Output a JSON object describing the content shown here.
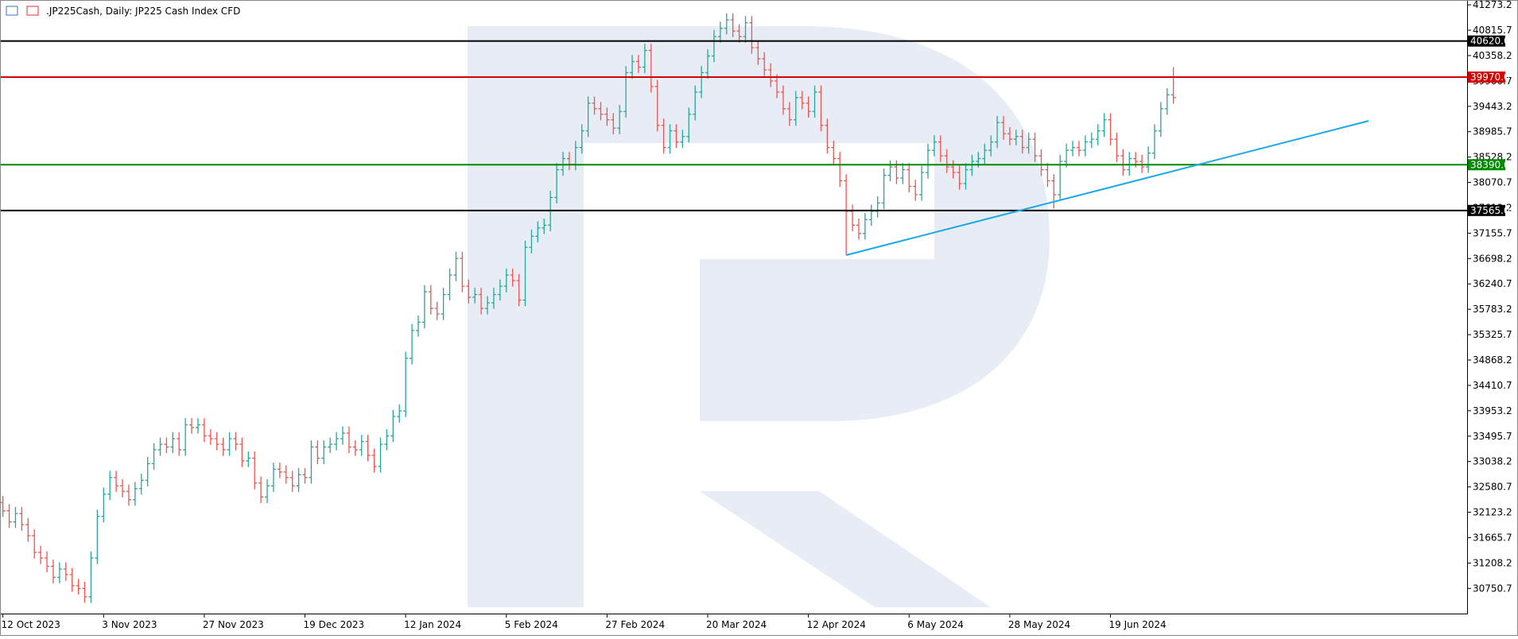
{
  "chart_data": {
    "type": "ohlc",
    "title": ".JP225Cash, Daily:  JP225 Cash Index CFD",
    "up_color": "#26a69a",
    "down_color": "#ef5350",
    "categories": [
      "12 Oct 2023",
      null,
      null,
      null,
      null,
      null,
      null,
      null,
      null,
      null,
      null,
      null,
      null,
      null,
      null,
      null,
      "3 Nov 2023",
      null,
      null,
      null,
      null,
      null,
      null,
      null,
      null,
      null,
      null,
      null,
      null,
      null,
      null,
      null,
      "27 Nov 2023",
      null,
      null,
      null,
      null,
      null,
      null,
      null,
      null,
      null,
      null,
      null,
      null,
      null,
      null,
      null,
      "19 Dec 2023",
      null,
      null,
      null,
      null,
      null,
      null,
      null,
      null,
      null,
      null,
      null,
      null,
      null,
      null,
      null,
      "12 Jan 2024",
      null,
      null,
      null,
      null,
      null,
      null,
      null,
      null,
      null,
      null,
      null,
      null,
      null,
      null,
      null,
      "5 Feb 2024",
      null,
      null,
      null,
      null,
      null,
      null,
      null,
      null,
      null,
      null,
      null,
      null,
      null,
      null,
      null,
      "27 Feb 2024",
      null,
      null,
      null,
      null,
      null,
      null,
      null,
      null,
      null,
      null,
      null,
      null,
      null,
      null,
      null,
      "20 Mar 2024",
      null,
      null,
      null,
      null,
      null,
      null,
      null,
      null,
      null,
      null,
      null,
      null,
      null,
      null,
      null,
      "12 Apr 2024",
      null,
      null,
      null,
      null,
      null,
      null,
      null,
      null,
      null,
      null,
      null,
      null,
      null,
      null,
      null,
      "6 May 2024",
      null,
      null,
      null,
      null,
      null,
      null,
      null,
      null,
      null,
      null,
      null,
      null,
      null,
      null,
      null,
      "28 May 2024",
      null,
      null,
      null,
      null,
      null,
      null,
      null,
      null,
      null,
      null,
      null,
      null,
      null,
      null,
      null,
      "19 Jun 2024",
      null,
      null,
      null,
      null,
      null,
      null,
      null,
      null,
      null,
      null
    ],
    "open": [
      32300,
      32150,
      31950,
      32100,
      31900,
      31700,
      31400,
      31300,
      31150,
      30950,
      31100,
      31000,
      30800,
      30750,
      30600,
      31300,
      32050,
      32450,
      32750,
      32600,
      32500,
      32350,
      32550,
      32700,
      33000,
      33250,
      33350,
      33300,
      33450,
      33250,
      33700,
      33650,
      33700,
      33500,
      33450,
      33350,
      33250,
      33450,
      33350,
      33050,
      33100,
      32650,
      32400,
      32600,
      32900,
      32850,
      32750,
      32600,
      32800,
      32750,
      33300,
      33100,
      33300,
      33350,
      33450,
      33550,
      33300,
      33250,
      33400,
      33150,
      32950,
      33350,
      33500,
      33850,
      33950,
      34900,
      35400,
      35550,
      36100,
      35800,
      35700,
      36050,
      36400,
      36700,
      36200,
      36000,
      36050,
      35800,
      35900,
      36050,
      36200,
      36400,
      36300,
      35950,
      36900,
      37100,
      37250,
      37300,
      37800,
      38300,
      38500,
      38400,
      38700,
      39000,
      39500,
      39400,
      39300,
      39200,
      39050,
      39350,
      40050,
      40250,
      40150,
      40450,
      39800,
      39100,
      38700,
      39000,
      38800,
      38900,
      39300,
      39700,
      40050,
      40350,
      40700,
      40850,
      41000,
      40800,
      40700,
      40950,
      40500,
      40300,
      40100,
      39900,
      39700,
      39400,
      39200,
      39600,
      39500,
      39350,
      39700,
      39100,
      38700,
      38500,
      38100,
      37550,
      37300,
      37150,
      37400,
      37550,
      37700,
      38200,
      38350,
      38150,
      38300,
      38000,
      37850,
      38250,
      38650,
      38800,
      38550,
      38350,
      38250,
      38050,
      38300,
      38450,
      38500,
      38650,
      38800,
      39150,
      38950,
      38850,
      38900,
      38700,
      38850,
      38550,
      38300,
      38100,
      37850,
      38450,
      38650,
      38700,
      38650,
      38800,
      38850,
      39000,
      39200,
      38850,
      38550,
      38300,
      38500,
      38450,
      38350,
      38600,
      39000,
      39400,
      39650
    ],
    "high": [
      32420,
      32270,
      32220,
      32220,
      32020,
      31820,
      31520,
      31420,
      31270,
      31220,
      31220,
      31120,
      30920,
      30870,
      31420,
      32170,
      32570,
      32870,
      32870,
      32720,
      32620,
      32670,
      32820,
      33120,
      33370,
      33470,
      33470,
      33570,
      33570,
      33820,
      33820,
      33820,
      33820,
      33620,
      33570,
      33470,
      33570,
      33570,
      33470,
      33220,
      33220,
      32770,
      32720,
      33020,
      33020,
      32970,
      32870,
      32920,
      32920,
      33420,
      33420,
      33420,
      33470,
      33570,
      33670,
      33670,
      33420,
      33520,
      33520,
      33270,
      33470,
      33620,
      33970,
      34070,
      35020,
      35520,
      35670,
      36220,
      36220,
      35920,
      36170,
      36520,
      36820,
      36820,
      36320,
      36170,
      36170,
      36020,
      36170,
      36320,
      36520,
      36520,
      36420,
      37020,
      37220,
      37370,
      37420,
      37920,
      38420,
      38620,
      38620,
      38820,
      39120,
      39620,
      39620,
      39520,
      39420,
      39320,
      39470,
      40170,
      40370,
      40370,
      40570,
      40570,
      39920,
      39220,
      39120,
      39120,
      39020,
      39420,
      39820,
      40170,
      40470,
      40820,
      40970,
      41120,
      41120,
      40920,
      41070,
      41070,
      40620,
      40420,
      40220,
      40020,
      39820,
      39520,
      39720,
      39720,
      39620,
      39820,
      39820,
      39220,
      38820,
      38620,
      38220,
      37670,
      37420,
      37520,
      37670,
      37820,
      38320,
      38470,
      38470,
      38420,
      38420,
      38120,
      38370,
      38770,
      38920,
      38920,
      38670,
      38470,
      38370,
      38420,
      38570,
      38620,
      38770,
      38920,
      39270,
      39270,
      39070,
      39020,
      39020,
      38970,
      38970,
      38670,
      38420,
      38220,
      38570,
      38770,
      38820,
      38820,
      38920,
      38970,
      39120,
      39320,
      39320,
      38970,
      38670,
      38620,
      38620,
      38570,
      38720,
      39120,
      39520,
      39770,
      40150
    ],
    "low": [
      32040,
      31840,
      31840,
      31790,
      31590,
      31290,
      31190,
      31040,
      30840,
      30840,
      30890,
      30690,
      30640,
      30490,
      30490,
      31190,
      31940,
      32340,
      32490,
      32390,
      32240,
      32240,
      32440,
      32590,
      32890,
      33140,
      33190,
      33190,
      33140,
      33140,
      33540,
      33540,
      33390,
      33340,
      33240,
      33140,
      33140,
      33240,
      32940,
      32940,
      32540,
      32290,
      32290,
      32490,
      32740,
      32640,
      32490,
      32490,
      32640,
      32640,
      32990,
      32990,
      33190,
      33240,
      33340,
      33190,
      33140,
      33140,
      33040,
      32840,
      32840,
      33240,
      33390,
      33740,
      33840,
      34790,
      35290,
      35440,
      35690,
      35590,
      35590,
      35940,
      36290,
      36090,
      35890,
      35890,
      35690,
      35690,
      35790,
      35940,
      36090,
      36190,
      35840,
      35840,
      36790,
      36990,
      37140,
      37190,
      37690,
      38190,
      38290,
      38290,
      38590,
      38890,
      39290,
      39190,
      39090,
      38940,
      38940,
      39240,
      39940,
      40040,
      40040,
      39690,
      38990,
      38590,
      38590,
      38690,
      38690,
      38790,
      39190,
      39590,
      39940,
      40240,
      40590,
      40740,
      40690,
      40590,
      40590,
      40390,
      40190,
      39990,
      39790,
      39590,
      39290,
      39090,
      39090,
      39390,
      39240,
      39240,
      38990,
      38590,
      38390,
      37990,
      36760,
      37190,
      37040,
      37040,
      37290,
      37440,
      37590,
      38090,
      38040,
      38040,
      37890,
      37740,
      37740,
      38140,
      38540,
      38440,
      38240,
      38140,
      37940,
      37940,
      38190,
      38340,
      38390,
      38540,
      38690,
      38840,
      38740,
      38740,
      38590,
      38590,
      38440,
      38190,
      37990,
      37600,
      37740,
      38340,
      38540,
      38540,
      38540,
      38690,
      38740,
      38890,
      38740,
      38440,
      38190,
      38190,
      38340,
      38240,
      38240,
      38490,
      38890,
      39290,
      39490
    ],
    "close": [
      32150,
      31950,
      32100,
      31900,
      31700,
      31400,
      31300,
      31150,
      30950,
      31100,
      31000,
      30800,
      30750,
      30600,
      31300,
      32050,
      32450,
      32750,
      32600,
      32500,
      32350,
      32550,
      32700,
      33000,
      33250,
      33350,
      33300,
      33450,
      33250,
      33700,
      33650,
      33700,
      33500,
      33450,
      33350,
      33250,
      33450,
      33350,
      33050,
      33100,
      32650,
      32400,
      32600,
      32900,
      32850,
      32750,
      32600,
      32800,
      32750,
      33300,
      33100,
      33300,
      33350,
      33450,
      33550,
      33300,
      33250,
      33400,
      33150,
      32950,
      33350,
      33500,
      33850,
      33950,
      34900,
      35400,
      35550,
      36100,
      35800,
      35700,
      36050,
      36400,
      36700,
      36200,
      36000,
      36050,
      35800,
      35900,
      36050,
      36200,
      36400,
      36300,
      35950,
      36900,
      37100,
      37250,
      37300,
      37800,
      38300,
      38500,
      38400,
      38700,
      39000,
      39500,
      39400,
      39300,
      39200,
      39050,
      39350,
      40050,
      40250,
      40150,
      40450,
      39800,
      39100,
      38700,
      39000,
      38800,
      38900,
      39300,
      39700,
      40050,
      40350,
      40700,
      40850,
      41000,
      40800,
      40700,
      40950,
      40500,
      40300,
      40100,
      39900,
      39700,
      39400,
      39200,
      39600,
      39500,
      39350,
      39700,
      39100,
      38700,
      38500,
      38100,
      37550,
      37300,
      37150,
      37400,
      37550,
      37700,
      38200,
      38350,
      38150,
      38300,
      38000,
      37850,
      38250,
      38650,
      38800,
      38550,
      38350,
      38250,
      38050,
      38300,
      38450,
      38500,
      38650,
      38800,
      39150,
      38950,
      38850,
      38900,
      38700,
      38850,
      38550,
      38300,
      38100,
      37850,
      38450,
      38650,
      38700,
      38650,
      38800,
      38850,
      39000,
      39200,
      38850,
      38550,
      38300,
      38500,
      38450,
      38350,
      38600,
      39000,
      39400,
      39650,
      39600
    ],
    "ylim": [
      30297,
      41360
    ],
    "yticks": [
      41273.2,
      40815.7,
      40358.2,
      39900.7,
      39443.2,
      38985.7,
      38528.2,
      38070.7,
      37613.2,
      37155.7,
      36698.2,
      36240.7,
      35783.2,
      35325.7,
      34868.2,
      34410.7,
      33953.2,
      33495.7,
      33038.2,
      32580.7,
      32123.2,
      31665.7,
      31208.2,
      30750.7
    ],
    "levels": [
      {
        "value": 40620,
        "label": "40620.0",
        "color": "#000000"
      },
      {
        "value": 39970,
        "label": "39970.0",
        "color": "#d40000"
      },
      {
        "value": 38390,
        "label": "38390.0",
        "color": "#008a00"
      },
      {
        "value": 37565,
        "label": "37565.0",
        "color": "#000000"
      }
    ],
    "trendline": {
      "x": [
        134,
        217
      ],
      "y": [
        36760,
        39180
      ],
      "color": "#1ba8e8"
    }
  }
}
